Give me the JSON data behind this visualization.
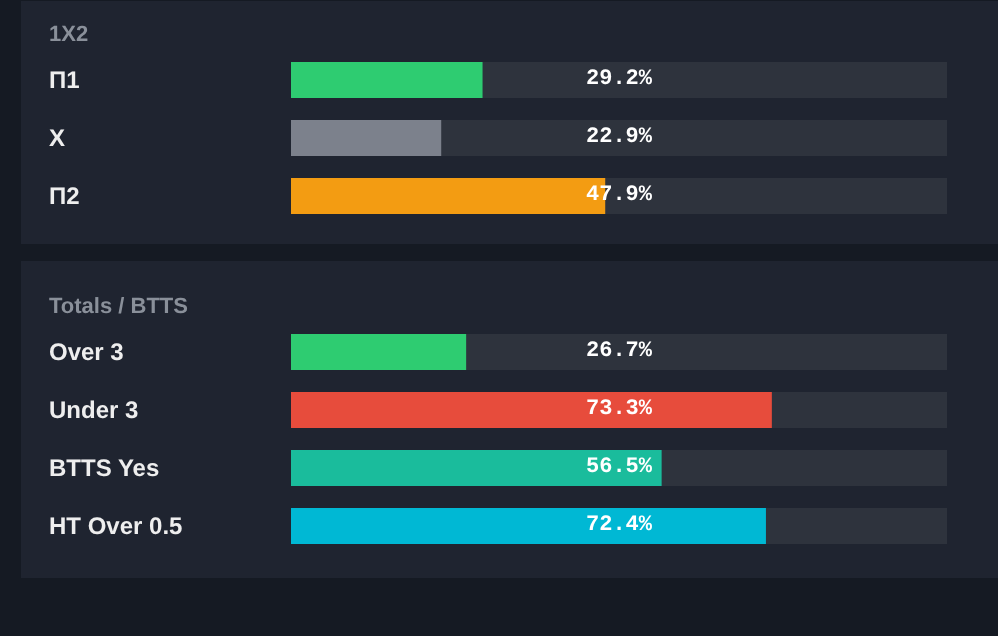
{
  "chart_data": [
    {
      "type": "bar",
      "orientation": "horizontal",
      "title": "1X2",
      "categories": [
        "П1",
        "X",
        "П2"
      ],
      "values": [
        29.2,
        22.9,
        47.9
      ],
      "colors": [
        "#2ecc71",
        "#7c818c",
        "#f39c12"
      ],
      "value_labels": [
        "29.2%",
        "22.9%",
        "47.9%"
      ],
      "xlim": [
        0,
        100
      ],
      "grid": false
    },
    {
      "type": "bar",
      "orientation": "horizontal",
      "title": "Totals / BTTS",
      "categories": [
        "Over 3",
        "Under 3",
        "BTTS Yes",
        "HT Over 0.5"
      ],
      "values": [
        26.7,
        73.3,
        56.5,
        72.4
      ],
      "colors": [
        "#2ecc71",
        "#e74c3c",
        "#1abc9c",
        "#00b8d4"
      ],
      "value_labels": [
        "26.7%",
        "73.3%",
        "56.5%",
        "72.4%"
      ],
      "xlim": [
        0,
        100
      ],
      "grid": false
    }
  ]
}
